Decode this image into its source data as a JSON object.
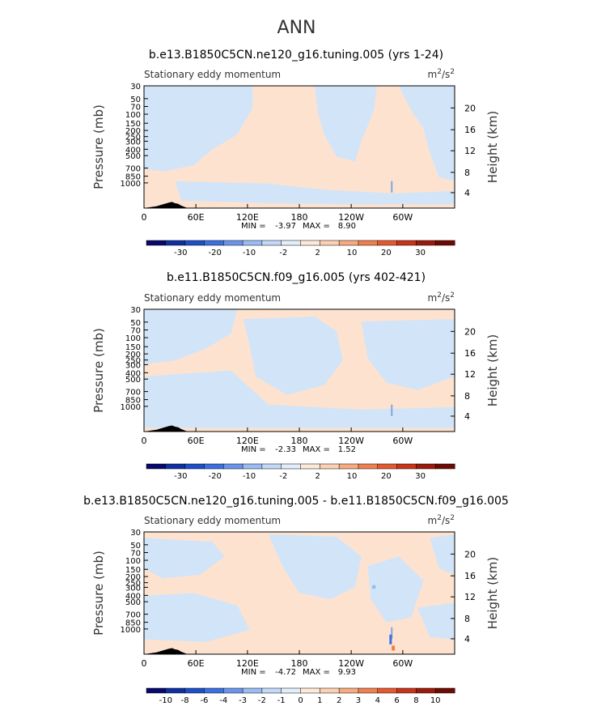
{
  "page_title": "ANN",
  "chart_data": [
    {
      "type": "heatmap",
      "title": "b.e13.B1850C5CN.ne120_g16.tuning.005 (yrs 1-24)",
      "left_label": "Stationary eddy momentum",
      "units": "m²/s²",
      "units_base": "m",
      "units_sup_1": "2",
      "units_mid": "/s",
      "units_sup_2": "2",
      "ylabel": "Pressure (mb)",
      "y2label": "Height (km)",
      "xticks": [
        "0",
        "60E",
        "120E",
        "180",
        "120W",
        "60W"
      ],
      "yticks": [
        "30",
        "50",
        "70",
        "100",
        "150",
        "200",
        "250",
        "300",
        "400",
        "500",
        "700",
        "850",
        "1000"
      ],
      "y2ticks": [
        "20",
        "16",
        "12",
        "8",
        "4"
      ],
      "min_label": "MIN =",
      "min": "-3.97",
      "max_label": "MAX =",
      "max": "8.90",
      "colorbar_labels": [
        "-30",
        "-20",
        "-10",
        "-2",
        "2",
        "10",
        "20",
        "30"
      ]
    },
    {
      "type": "heatmap",
      "title": "b.e11.B1850C5CN.f09_g16.005 (yrs 402-421)",
      "left_label": "Stationary eddy momentum",
      "units": "m²/s²",
      "units_base": "m",
      "units_sup_1": "2",
      "units_mid": "/s",
      "units_sup_2": "2",
      "ylabel": "Pressure (mb)",
      "y2label": "Height (km)",
      "xticks": [
        "0",
        "60E",
        "120E",
        "180",
        "120W",
        "60W"
      ],
      "yticks": [
        "30",
        "50",
        "70",
        "100",
        "150",
        "200",
        "250",
        "300",
        "400",
        "500",
        "700",
        "850",
        "1000"
      ],
      "y2ticks": [
        "20",
        "16",
        "12",
        "8",
        "4"
      ],
      "min_label": "MIN =",
      "min": "-2.33",
      "max_label": "MAX =",
      "max": "1.52",
      "colorbar_labels": [
        "-30",
        "-20",
        "-10",
        "-2",
        "2",
        "10",
        "20",
        "30"
      ]
    },
    {
      "type": "heatmap",
      "title": "b.e13.B1850C5CN.ne120_g16.tuning.005 - b.e11.B1850C5CN.f09_g16.005",
      "left_label": "Stationary eddy momentum",
      "units": "m²/s²",
      "units_base": "m",
      "units_sup_1": "2",
      "units_mid": "/s",
      "units_sup_2": "2",
      "ylabel": "Pressure (mb)",
      "y2label": "Height (km)",
      "xticks": [
        "0",
        "60E",
        "120E",
        "180",
        "120W",
        "60W"
      ],
      "yticks": [
        "30",
        "50",
        "70",
        "100",
        "150",
        "200",
        "250",
        "300",
        "400",
        "500",
        "700",
        "850",
        "1000"
      ],
      "y2ticks": [
        "20",
        "16",
        "12",
        "8",
        "4"
      ],
      "min_label": "MIN =",
      "min": "-4.72",
      "max_label": "MAX =",
      "max": "9.93",
      "colorbar_labels": [
        "-10",
        "-8",
        "-6",
        "-4",
        "-3",
        "-2",
        "-1",
        "0",
        "1",
        "2",
        "3",
        "4",
        "6",
        "8",
        "10"
      ]
    }
  ],
  "colors": {
    "positive_fill": "#fde3cf",
    "negative_fill": "#d2e4f8",
    "colorbar": [
      "#08086e",
      "#1030a0",
      "#1c4fc8",
      "#3c6fe0",
      "#6b95ec",
      "#9bbcf4",
      "#c4d8f8",
      "#e4eefb",
      "#fde9d8",
      "#fcd0b2",
      "#f8aa80",
      "#f08050",
      "#e45a30",
      "#c83418",
      "#9c1a0c",
      "#6e0a04"
    ]
  }
}
